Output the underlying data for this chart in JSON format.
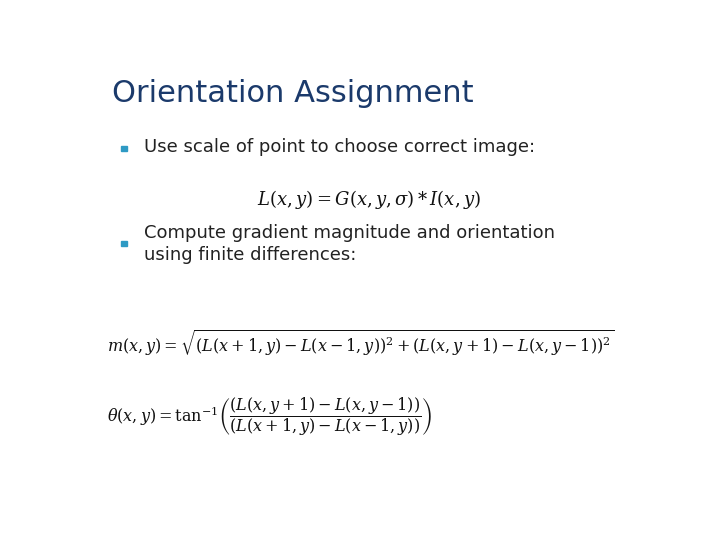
{
  "title": "Orientation Assignment",
  "title_color": "#1B3A6B",
  "title_fontsize": 22,
  "background_color": "#FFFFFF",
  "bullet_color": "#2E9AC4",
  "bullet1": "Use scale of point to choose correct image:",
  "text_color": "#222222",
  "formula_color": "#111111",
  "bullet_size": 0.014,
  "text_fontsize": 13,
  "formula1_fontsize": 13,
  "formula2_fontsize": 11.5
}
